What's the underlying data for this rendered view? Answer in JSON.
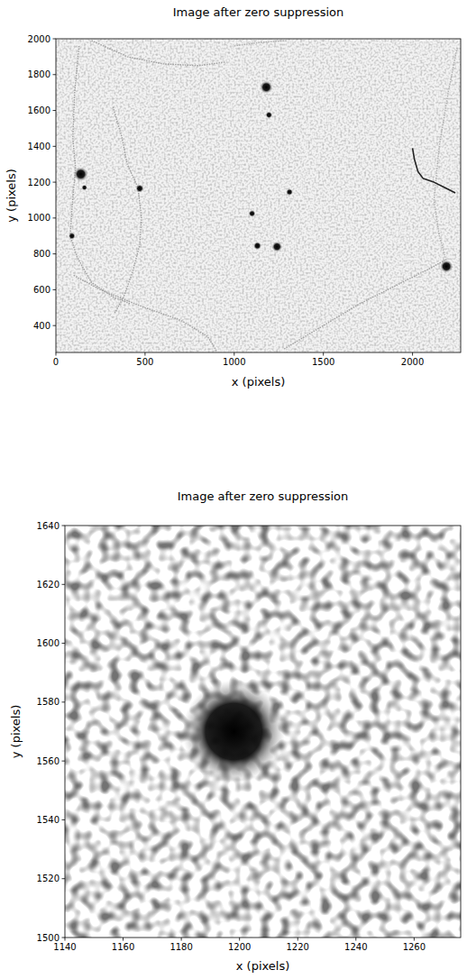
{
  "chart_data": [
    {
      "type": "image",
      "title": "Image after zero suppression",
      "x_label": "x (pixels)",
      "y_label": "y (pixels)",
      "xlim": [
        0,
        2270
      ],
      "ylim": [
        250,
        2000
      ],
      "xticks": [
        0,
        500,
        1000,
        1500,
        2000
      ],
      "yticks": [
        400,
        600,
        800,
        1000,
        1200,
        1400,
        1600,
        1800,
        2000
      ],
      "spots": {
        "x": [
          1180,
          1195,
          1310,
          1100,
          1130,
          1240,
          470,
          140,
          90,
          2190,
          160
        ],
        "y": [
          1730,
          1575,
          1145,
          1025,
          845,
          840,
          1165,
          1245,
          900,
          730,
          1170
        ],
        "size": [
          22,
          12,
          12,
          12,
          14,
          18,
          14,
          24,
          12,
          22,
          10
        ]
      },
      "tracks": [
        {
          "x": [
            130,
            105,
            95,
            110,
            90,
            80,
            120,
            200,
            320,
            420
          ],
          "y": [
            1960,
            1700,
            1450,
            1280,
            1050,
            900,
            780,
            640,
            560,
            520
          ],
          "color": "#a0a0a0",
          "line_style": "dotted"
        },
        {
          "x": [
            200,
            400,
            600,
            800,
            950
          ],
          "y": [
            1990,
            1900,
            1860,
            1850,
            1870
          ],
          "color": "#a0a0a0",
          "line_style": "dotted"
        },
        {
          "x": [
            1000,
            1150,
            1300
          ],
          "y": [
            1960,
            1980,
            1990
          ],
          "color": "#b0b0b0",
          "line_style": "dotted"
        },
        {
          "x": [
            320,
            370,
            400,
            460,
            480,
            470,
            430,
            380,
            330
          ],
          "y": [
            1620,
            1450,
            1300,
            1170,
            1000,
            850,
            700,
            560,
            470
          ],
          "color": "#a0a0a0",
          "line_style": "dotted"
        },
        {
          "x": [
            100,
            250,
            500,
            700,
            850,
            900
          ],
          "y": [
            680,
            600,
            500,
            430,
            340,
            260
          ],
          "color": "#a0a0a0",
          "line_style": "dotted"
        },
        {
          "x": [
            1280,
            1500,
            1700,
            1900,
            2100,
            2190
          ],
          "y": [
            270,
            400,
            520,
            620,
            720,
            770
          ],
          "color": "#a0a0a0",
          "line_style": "dotted"
        },
        {
          "x": [
            2250,
            2200,
            2150,
            2120,
            2150,
            2190
          ],
          "y": [
            1950,
            1700,
            1400,
            1100,
            900,
            760
          ],
          "color": "#b0b0b0",
          "line_style": "dotted"
        },
        {
          "x": [
            2000,
            2010,
            2030,
            2060,
            2120,
            2180,
            2240
          ],
          "y": [
            1390,
            1330,
            1260,
            1220,
            1200,
            1170,
            1140
          ],
          "color": "#222222",
          "line_style": "solid"
        }
      ]
    },
    {
      "type": "image",
      "title": "Image after zero suppression",
      "x_label": "x (pixels)",
      "y_label": "y (pixels)",
      "xlim": [
        1140,
        1276
      ],
      "ylim": [
        1500,
        1640
      ],
      "xticks": [
        1140,
        1160,
        1180,
        1200,
        1220,
        1240,
        1260
      ],
      "yticks": [
        1500,
        1520,
        1540,
        1560,
        1580,
        1600,
        1620,
        1640
      ],
      "spots": {
        "x": [
          1198
        ],
        "y": [
          1570
        ],
        "size": [
          11
        ]
      },
      "tracks": []
    }
  ]
}
